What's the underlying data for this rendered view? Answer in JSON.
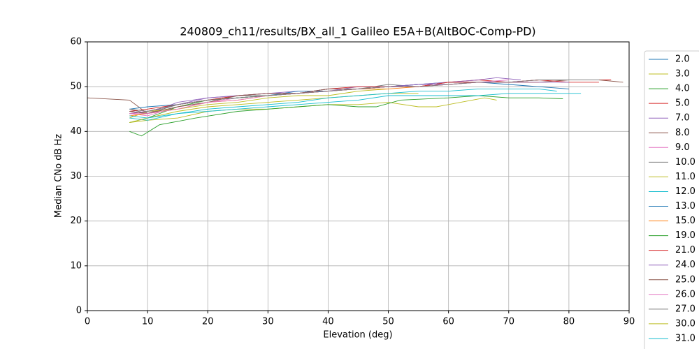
{
  "chart_data": {
    "type": "line",
    "title": "240809_ch11/results/BX_all_1 Galileo E5A+B(AltBOC-Comp-PD)",
    "x_label": "Elevation (deg)",
    "y_label": "Median CNo dB Hz",
    "xlim": [
      0,
      90
    ],
    "ylim": [
      0,
      60
    ],
    "xticks": [
      0,
      10,
      20,
      30,
      40,
      50,
      60,
      70,
      80,
      90
    ],
    "yticks": [
      0,
      10,
      20,
      30,
      40,
      50,
      60
    ],
    "grid": true,
    "series": [
      {
        "name": "2.0",
        "color": "#1f77b4",
        "x": [
          7,
          10,
          15,
          20,
          25,
          30,
          35,
          40,
          45,
          50,
          55,
          60,
          65,
          70,
          75,
          80
        ],
        "values": [
          44.5,
          44,
          46,
          47,
          47.5,
          48,
          48.5,
          49,
          49.5,
          50,
          50.5,
          51,
          51,
          50.5,
          50,
          49.5
        ]
      },
      {
        "name": "3.0",
        "color": "#bcbd22",
        "x": [
          7,
          10,
          15,
          20,
          25,
          30,
          35,
          40,
          45,
          50,
          55,
          58,
          62,
          66,
          68
        ],
        "values": [
          42,
          42.5,
          43,
          44.5,
          45,
          45,
          45.5,
          46,
          46,
          46.5,
          45.5,
          45.5,
          46.5,
          47.5,
          47
        ]
      },
      {
        "name": "4.0",
        "color": "#2ca02c",
        "x": [
          7,
          9,
          12,
          18,
          25,
          30,
          35,
          40,
          45,
          48,
          52,
          60,
          65,
          70,
          75,
          79
        ],
        "values": [
          40,
          39,
          41.5,
          43,
          44.5,
          45,
          45.5,
          46,
          45.5,
          45.5,
          47,
          47.5,
          48,
          47.5,
          47.5,
          47.3
        ]
      },
      {
        "name": "5.0",
        "color": "#d62728",
        "x": [
          7,
          10,
          15,
          20,
          25,
          30,
          35,
          40,
          45,
          50,
          55,
          60,
          65,
          70,
          75,
          80,
          87
        ],
        "values": [
          44,
          44.5,
          46,
          47,
          47.5,
          48,
          48.5,
          49,
          49.5,
          50,
          50,
          51,
          51.5,
          51,
          51.5,
          51.5,
          51.5
        ]
      },
      {
        "name": "7.0",
        "color": "#9467bd",
        "x": [
          7,
          10,
          15,
          20,
          25,
          30,
          35,
          40,
          45,
          50,
          55,
          60,
          65,
          68,
          72
        ],
        "values": [
          45,
          44,
          46.5,
          47.5,
          48,
          48.5,
          49,
          49,
          50,
          50,
          50.5,
          51,
          51.5,
          52,
          51.5
        ]
      },
      {
        "name": "8.0",
        "color": "#8c564b",
        "x": [
          0,
          7,
          10,
          15,
          20,
          25,
          30,
          35,
          40,
          45,
          50,
          55,
          60,
          65,
          70,
          75,
          80,
          85,
          89
        ],
        "values": [
          47.5,
          47,
          44,
          46,
          47,
          47.5,
          48,
          48.5,
          49,
          49.5,
          50,
          50,
          51,
          51,
          51,
          51,
          51.5,
          51.5,
          51
        ]
      },
      {
        "name": "9.0",
        "color": "#e377c2",
        "x": [
          7,
          10,
          15,
          20,
          25,
          30,
          35,
          40,
          45,
          50,
          55,
          60,
          65,
          70
        ],
        "values": [
          44,
          43.5,
          45.5,
          46.5,
          47.5,
          48,
          48.5,
          49,
          49.5,
          50,
          50.5,
          50.5,
          51,
          51.5
        ]
      },
      {
        "name": "10.0",
        "color": "#7f7f7f",
        "x": [
          7,
          10,
          15,
          20,
          25,
          30,
          35,
          40,
          45,
          50,
          55,
          60,
          65,
          70,
          75
        ],
        "values": [
          45,
          44,
          46,
          47,
          48,
          48,
          48.5,
          49.5,
          49.5,
          50.5,
          50,
          50.5,
          51,
          51,
          51.5
        ]
      },
      {
        "name": "11.0",
        "color": "#bcbd22",
        "x": [
          7,
          10,
          15,
          20,
          25,
          30,
          35,
          40,
          45,
          50
        ],
        "values": [
          43,
          44.5,
          45,
          46,
          46.5,
          47.5,
          48,
          48,
          49,
          49.5
        ]
      },
      {
        "name": "12.0",
        "color": "#17becf",
        "x": [
          7,
          10,
          15,
          20,
          25,
          30,
          35,
          40,
          45,
          50,
          55,
          60,
          65,
          70,
          75,
          80,
          82
        ],
        "values": [
          43,
          42.5,
          44,
          44.5,
          45,
          45.5,
          46,
          46.5,
          47,
          48,
          48,
          48,
          48,
          48.5,
          48.5,
          48.5,
          48.5
        ]
      },
      {
        "name": "13.0",
        "color": "#1f77b4",
        "x": [
          7,
          10,
          15,
          20,
          25,
          30,
          35,
          40,
          45,
          50,
          55,
          60
        ],
        "values": [
          45,
          45.5,
          46,
          47,
          47.5,
          48,
          49,
          49,
          49.5,
          50,
          50.5,
          50.5
        ]
      },
      {
        "name": "15.0",
        "color": "#ff7f0e",
        "x": [
          7,
          10,
          15,
          20,
          25,
          30,
          35,
          40,
          45,
          50,
          55,
          60,
          65,
          70,
          75
        ],
        "values": [
          43.5,
          44,
          45,
          46.5,
          47,
          48,
          48.5,
          49,
          49.5,
          49.5,
          50,
          50.5,
          51,
          51,
          51
        ]
      },
      {
        "name": "19.0",
        "color": "#2ca02c",
        "x": [
          7,
          10,
          15,
          20,
          25,
          30,
          35,
          40,
          45
        ],
        "values": [
          42,
          43,
          45.5,
          47,
          47.5,
          48,
          48.5,
          49.5,
          49.5
        ]
      },
      {
        "name": "21.0",
        "color": "#d62728",
        "x": [
          7,
          10,
          15,
          20,
          25,
          30,
          35,
          40,
          45,
          50,
          55,
          60,
          65,
          70,
          75,
          80,
          85
        ],
        "values": [
          44.5,
          45,
          46,
          47,
          48,
          48.5,
          48.5,
          49.5,
          50,
          50,
          50,
          51,
          51,
          51,
          51.5,
          51,
          51
        ]
      },
      {
        "name": "24.0",
        "color": "#9467bd",
        "x": [
          7,
          10,
          15,
          20,
          25,
          30,
          35,
          40,
          45,
          50,
          55,
          60,
          65,
          70,
          75,
          80
        ],
        "values": [
          44,
          44.5,
          46,
          47.5,
          48,
          48.5,
          48.5,
          49.5,
          49.5,
          50,
          50.5,
          50.5,
          51,
          51,
          51,
          51
        ]
      },
      {
        "name": "25.0",
        "color": "#8c564b",
        "x": [
          7,
          10,
          15,
          20,
          25,
          30,
          35,
          40,
          45,
          50
        ],
        "values": [
          44.5,
          44,
          45.5,
          46.5,
          48,
          48.5,
          48.5,
          49.5,
          49.5,
          50
        ]
      },
      {
        "name": "26.0",
        "color": "#e377c2",
        "x": [
          7,
          10,
          15,
          20,
          25,
          30,
          35,
          40,
          45,
          50,
          55,
          60,
          65,
          70
        ],
        "values": [
          44,
          44,
          45,
          46.5,
          47,
          48,
          48.5,
          49,
          49.5,
          50,
          50,
          50.5,
          51,
          51
        ]
      },
      {
        "name": "27.0",
        "color": "#7f7f7f",
        "x": [
          7,
          10,
          15,
          20,
          25,
          30,
          35,
          40,
          45,
          50,
          55,
          60,
          65,
          70,
          75,
          80,
          85
        ],
        "values": [
          45,
          44.5,
          46,
          47,
          47.5,
          48,
          48.5,
          49,
          49.5,
          50,
          50,
          50.5,
          51,
          51,
          51.5,
          51.5,
          51.5
        ]
      },
      {
        "name": "30.0",
        "color": "#bcbd22",
        "x": [
          7,
          10,
          15,
          20,
          25,
          30,
          35,
          40,
          45,
          50,
          55
        ],
        "values": [
          42,
          43,
          44.5,
          45.5,
          46,
          46.5,
          47,
          47.5,
          48,
          48.5,
          48.5
        ]
      },
      {
        "name": "31.0",
        "color": "#17becf",
        "x": [
          7,
          10,
          15,
          20,
          25,
          30,
          35,
          40,
          45,
          50,
          55,
          60,
          65,
          70,
          75,
          78
        ],
        "values": [
          43.5,
          43,
          44,
          45,
          45.5,
          46,
          46.5,
          47.5,
          48,
          48.5,
          49,
          49,
          49.5,
          49.5,
          49.5,
          49
        ]
      }
    ]
  }
}
